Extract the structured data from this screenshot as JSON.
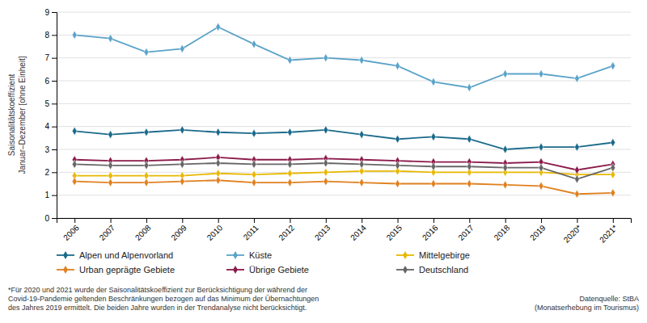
{
  "chart_data": {
    "type": "line",
    "categories": [
      "2006",
      "2007",
      "2008",
      "2009",
      "2010",
      "2011",
      "2012",
      "2013",
      "2014",
      "2015",
      "2016",
      "2017",
      "2018",
      "2019",
      "2020*",
      "2021*"
    ],
    "series": [
      {
        "name": "Alpen und Alpenvorland",
        "color": "#1a6a8a",
        "values": [
          3.8,
          3.65,
          3.75,
          3.85,
          3.75,
          3.7,
          3.75,
          3.85,
          3.65,
          3.45,
          3.55,
          3.45,
          3.0,
          3.1,
          3.1,
          3.3
        ]
      },
      {
        "name": "Küste",
        "color": "#5ba3c9",
        "values": [
          8.0,
          7.85,
          7.25,
          7.4,
          8.35,
          7.6,
          6.9,
          7.0,
          6.9,
          6.65,
          5.95,
          5.7,
          6.3,
          6.3,
          6.1,
          6.65
        ]
      },
      {
        "name": "Mittelgebirge",
        "color": "#e8b800",
        "values": [
          1.85,
          1.85,
          1.85,
          1.85,
          1.95,
          1.9,
          1.95,
          2.0,
          2.05,
          2.05,
          2.0,
          2.0,
          2.0,
          2.0,
          1.9,
          1.9
        ]
      },
      {
        "name": "Urban geprägte Gebiete",
        "color": "#e08020",
        "values": [
          1.6,
          1.55,
          1.55,
          1.6,
          1.65,
          1.55,
          1.55,
          1.6,
          1.55,
          1.5,
          1.5,
          1.5,
          1.45,
          1.4,
          1.05,
          1.1
        ]
      },
      {
        "name": "Übrige Gebiete",
        "color": "#8b1a4a",
        "values": [
          2.55,
          2.5,
          2.5,
          2.55,
          2.65,
          2.55,
          2.55,
          2.6,
          2.55,
          2.5,
          2.45,
          2.45,
          2.4,
          2.45,
          2.1,
          2.35
        ]
      },
      {
        "name": "Deutschland",
        "color": "#666666",
        "values": [
          2.35,
          2.3,
          2.3,
          2.35,
          2.4,
          2.35,
          2.35,
          2.4,
          2.35,
          2.3,
          2.25,
          2.25,
          2.2,
          2.2,
          1.7,
          2.2
        ]
      }
    ],
    "y_label": "Saisonalitätskoeffizient\nJanuar–Dezember [ohne Einheit]",
    "ylim": [
      0,
      9
    ],
    "yticks": [
      0,
      1,
      2,
      3,
      4,
      5,
      6,
      7,
      8,
      9
    ],
    "grid": true,
    "legend": "bottom",
    "marker": "diamond",
    "annotations": [
      "*Für 2020 und 2021 wurde der Saisonalitätskoeffizient zur Berücksichtigung der während der\nCovid-19-Pandemie geltenden Beschränkungen bezogen auf das Minimum der Übernachtungen\ndes Jahres 2019 ermittelt. Die beiden Jahre wurden in der Trendanalyse nicht berücksichtigt.",
      "Datenquelle: StBA\n(Monatserhebung im Tourismus)"
    ]
  }
}
